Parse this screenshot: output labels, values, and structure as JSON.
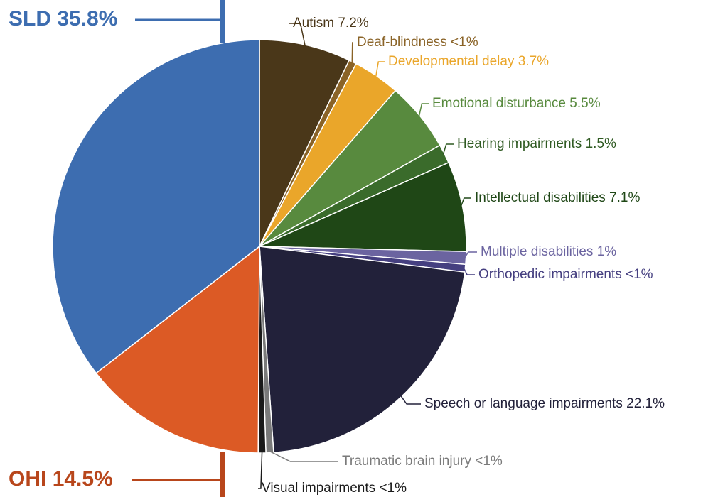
{
  "chart_data": {
    "type": "pie",
    "categories": [
      "Autism",
      "Deaf-blindness",
      "Developmental delay",
      "Emotional disturbance",
      "Hearing impairments",
      "Intellectual disabilities",
      "Multiple disabilities",
      "Orthopedic impairments",
      "Speech or language impairments",
      "Traumatic brain injury",
      "Visual impairments",
      "OHI",
      "SLD"
    ],
    "values": [
      7.2,
      0.6,
      3.7,
      5.5,
      1.5,
      7.1,
      1,
      0.6,
      22.1,
      0.6,
      0.6,
      14.5,
      35.8
    ],
    "value_labels": [
      "7.2%",
      "<1%",
      "3.7%",
      "5.5%",
      "1.5%",
      "7.1%",
      "1%",
      "<1%",
      "22.1%",
      "<1%",
      "<1%",
      "14.5%",
      "35.8%"
    ],
    "colors": [
      "#4a3719",
      "#8a6327",
      "#eaa62a",
      "#588a3e",
      "#3a6b2b",
      "#1f4716",
      "#6b64a0",
      "#453f80",
      "#22213a",
      "#7a7a7a",
      "#1a1a1a",
      "#dc5a25",
      "#3d6db0"
    ],
    "label_colors": [
      "#4a3719",
      "#8a6327",
      "#eaa62a",
      "#588a3e",
      "#2f5a22",
      "#1f4716",
      "#6b64a0",
      "#453f80",
      "#22213a",
      "#7a7a7a",
      "#1a1a1a",
      "#b8461b",
      "#3d6db0"
    ]
  }
}
